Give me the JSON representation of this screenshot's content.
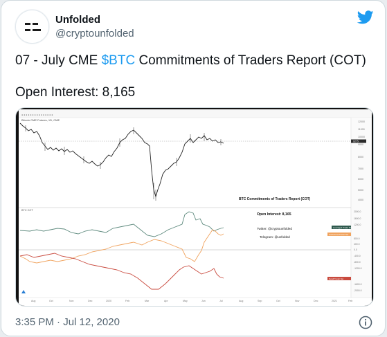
{
  "account": {
    "display_name": "Unfolded",
    "handle": "@cryptounfolded",
    "avatar_icon": "unfolded-logo-icon"
  },
  "tweet": {
    "text_prefix": "07 - July CME ",
    "cashtag": "$BTC",
    "text_suffix": " Commitments of Traders Report (COT)",
    "open_interest_line": "Open Interest: 8,165",
    "timestamp": "3:35 PM · Jul 12, 2020"
  },
  "chart_image": {
    "instrument_label": "Bitcoin CME Futures, 1D, CME",
    "panel_title": "BTC Commitments of Traders Report (COT)",
    "open_interest": "Open Interest: 8,165",
    "twitter_credit": "Twitter: @cryptounfolded",
    "telegram_credit": "Telegram: @unfolded",
    "cot_indicator_label": "BTC COT",
    "price_axis_ticks": [
      "12000",
      "11000",
      "10000",
      "9000",
      "8000",
      "7000",
      "6000",
      "5000",
      "4000"
    ],
    "cot_axis_ticks": [
      "2000.0",
      "1600.0",
      "1200.0",
      "800.0",
      "400.0",
      "0.0",
      "-400.0",
      "-800.0",
      "-1200.0",
      "-1600.0",
      "-2000.0"
    ],
    "x_axis_labels": [
      "Aug",
      "Oct",
      "Nov",
      "Dec",
      "2020",
      "Feb",
      "Mar",
      "Apr",
      "May",
      "Jun",
      "Jul",
      "Aug",
      "Sep",
      "Oct",
      "Nov",
      "Dec",
      "2021",
      "Feb"
    ],
    "price_tag": "9275",
    "leveraged_tag": "Leveraged Trader Net",
    "institutional_tag": "Institutional Trader Net",
    "retail_tag": "Retail Trader Net",
    "colors": {
      "leveraged": "#5e8a7e",
      "institutional": "#f0a35e",
      "retail": "#c94a3e",
      "price": "#222222"
    }
  }
}
